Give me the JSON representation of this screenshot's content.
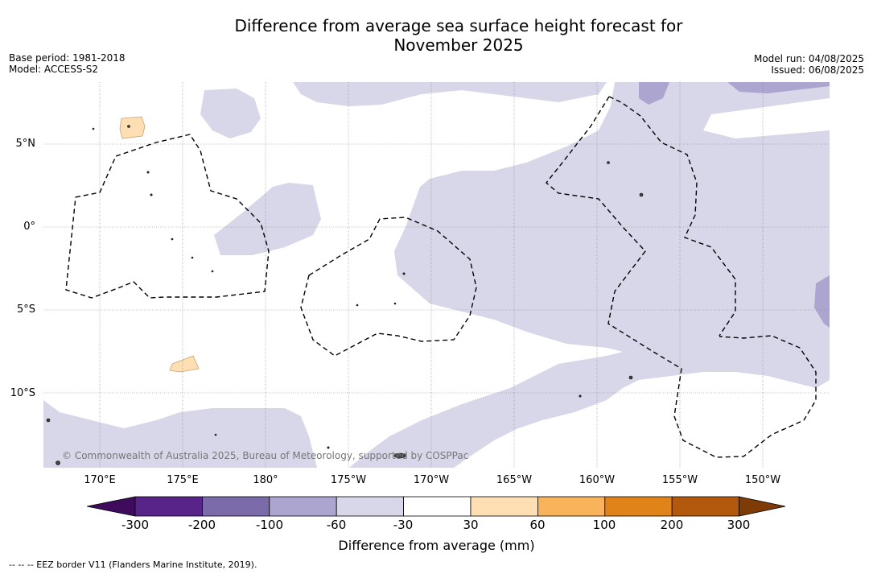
{
  "title_line1": "Difference from average sea surface height forecast for",
  "title_line2": "November 2025",
  "meta": {
    "base_period": "Base period: 1981-2018",
    "model": "Model: ACCESS-S2",
    "model_run": "Model run: 04/08/2025",
    "issued": "Issued: 06/08/2025"
  },
  "lat_labels": [
    "5°N",
    "0°",
    "5°S",
    "10°S"
  ],
  "lon_labels": [
    "170°E",
    "175°E",
    "180°",
    "175°W",
    "170°W",
    "165°W",
    "160°W",
    "155°W",
    "150°W"
  ],
  "copyright": "© Commonwealth of Australia 2025, Bureau of Meteorology, supported by COSPPac",
  "colorbar": {
    "ticks": [
      "-300",
      "-200",
      "-100",
      "-60",
      "-30",
      "30",
      "60",
      "100",
      "200",
      "300"
    ],
    "colors": [
      "#3f0b5c",
      "#58248a",
      "#7b6bab",
      "#aba5cf",
      "#d7d7e9",
      "#ffffff",
      "#fddfb3",
      "#f9b35b",
      "#e08419",
      "#b3590e",
      "#7e3b06"
    ],
    "title": "Difference from average (mm)"
  },
  "footer": "--  --  -- EEZ border V11 (Flanders Marine Institute, 2019)."
}
